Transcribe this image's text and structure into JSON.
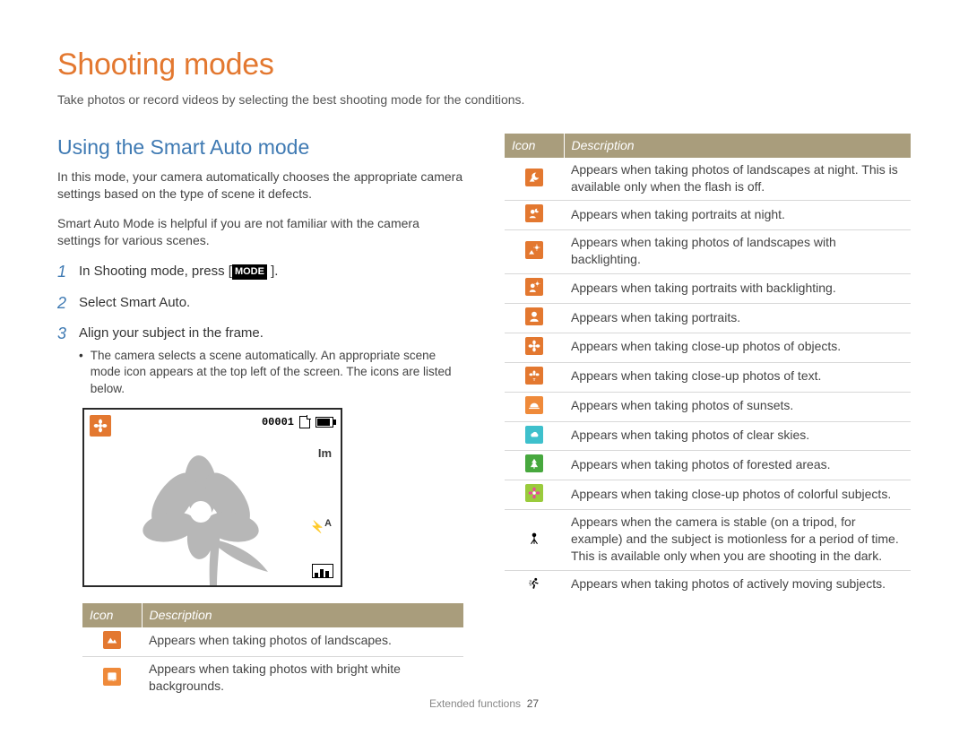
{
  "colors": {
    "accent_orange": "#e37830",
    "accent_blue": "#3f7ab3",
    "table_header_bg": "#a99d7c",
    "table_header_text": "#ffffff",
    "body_text": "#444444",
    "row_border": "#d8d8d8",
    "icon_orange": "#e37830",
    "icon_orange_alt": "#ef8a3a",
    "icon_cyan": "#3ec0cc",
    "icon_green": "#47a83e",
    "icon_lime": "#9acb3c",
    "icon_black": "#000000"
  },
  "page": {
    "title": "Shooting modes",
    "subtitle": "Take photos or record videos by selecting the best shooting mode for the conditions.",
    "footer_label": "Extended functions",
    "footer_page": "27"
  },
  "section": {
    "heading": "Using the Smart Auto mode",
    "p1": "In this mode, your camera automatically chooses the appropriate camera settings based on the type of scene it defects.",
    "p2": "Smart Auto Mode is helpful if you are not familiar with the camera settings for various scenes."
  },
  "steps": [
    {
      "num": "1",
      "prefix": "In Shooting mode, press ",
      "badge": "MODE",
      "suffix": " ]."
    },
    {
      "num": "2",
      "text": "Select Smart Auto."
    },
    {
      "num": "3",
      "text": "Align your subject in the frame.",
      "bullet": "The camera selects a scene automatically. An appropriate scene mode icon appears at the top left of the screen. The icons are listed below."
    }
  ],
  "lcd": {
    "counter": "00001",
    "size_label": "Im",
    "flash_label": "A"
  },
  "left_table": {
    "headers": [
      "Icon",
      "Description"
    ],
    "rows": [
      {
        "icon": "landscape",
        "color": "#e37830",
        "desc": "Appears when taking photos of landscapes."
      },
      {
        "icon": "white-bg",
        "color": "#ef8a3a",
        "desc": "Appears when taking photos with bright white backgrounds."
      }
    ]
  },
  "right_table": {
    "headers": [
      "Icon",
      "Description"
    ],
    "rows": [
      {
        "icon": "night-landscape",
        "color": "#e37830",
        "desc": "Appears when taking photos of landscapes at night. This is available only when the flash is off."
      },
      {
        "icon": "night-portrait",
        "color": "#e37830",
        "desc": "Appears when taking portraits at night."
      },
      {
        "icon": "backlight-land",
        "color": "#e37830",
        "desc": "Appears when taking photos of landscapes with backlighting."
      },
      {
        "icon": "backlight-port",
        "color": "#e37830",
        "desc": "Appears when taking portraits with backlighting."
      },
      {
        "icon": "portrait",
        "color": "#e37830",
        "desc": "Appears when taking portraits."
      },
      {
        "icon": "macro",
        "color": "#e37830",
        "desc": "Appears when taking close-up photos of objects."
      },
      {
        "icon": "macro-text",
        "color": "#e37830",
        "desc": "Appears when taking close-up photos of text."
      },
      {
        "icon": "sunset",
        "color": "#ef8a3a",
        "desc": "Appears when taking photos of sunsets."
      },
      {
        "icon": "clear-sky",
        "color": "#3ec0cc",
        "desc": "Appears when taking photos of clear skies."
      },
      {
        "icon": "forest",
        "color": "#47a83e",
        "desc": "Appears when taking photos of forested areas."
      },
      {
        "icon": "macro-color",
        "color": "#9acb3c",
        "desc": "Appears when taking close-up photos of colorful subjects."
      },
      {
        "icon": "tripod",
        "color": "#000000",
        "desc": "Appears when the camera is stable (on a tripod, for example) and the subject is motionless for a period of time. This is available only when you are shooting in the dark."
      },
      {
        "icon": "action",
        "color": "#000000",
        "desc": "Appears when taking photos of actively moving subjects."
      }
    ]
  }
}
